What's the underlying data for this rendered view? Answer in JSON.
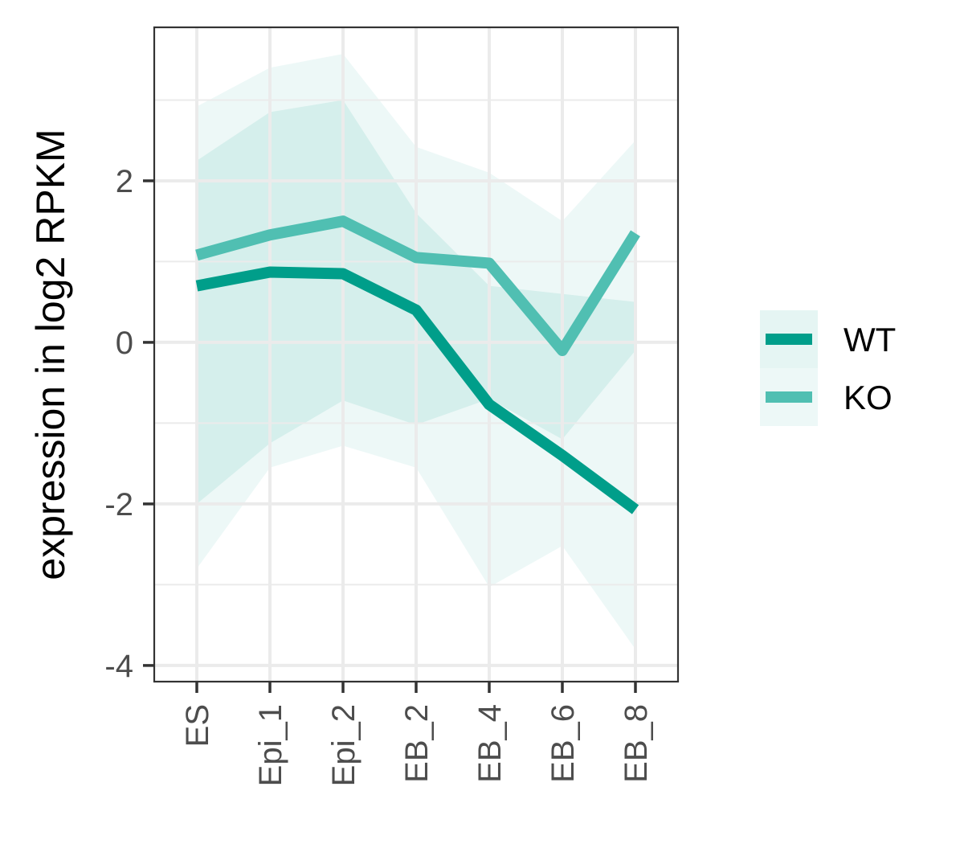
{
  "chart_data": {
    "type": "line",
    "title": "",
    "xlabel": "",
    "ylabel": "expression in log2 RPKM",
    "categories": [
      "ES",
      "Epi_1",
      "Epi_2",
      "EB_2",
      "EB_4",
      "EB_6",
      "EB_8"
    ],
    "ylim": [
      -4.2,
      3.9
    ],
    "yticks": [
      -4,
      -2,
      0,
      2
    ],
    "y_tick_labels": [
      "-4",
      "-2",
      "0",
      "2"
    ],
    "grid": true,
    "legend": "right",
    "series": [
      {
        "name": "WT",
        "color": "#009E8A",
        "values": [
          0.7,
          0.87,
          0.85,
          0.4,
          -0.77,
          -1.4,
          -2.07
        ],
        "band_lower": [
          -2.0,
          -1.25,
          -0.72,
          -1.02,
          -0.7,
          -1.2,
          -0.1
        ],
        "band_upper": [
          2.25,
          2.85,
          3.0,
          1.6,
          0.7,
          0.6,
          0.5
        ]
      },
      {
        "name": "KO",
        "color": "#50BFB2",
        "values": [
          1.08,
          1.33,
          1.5,
          1.05,
          0.98,
          -0.1,
          1.35
        ],
        "band_lower": [
          -2.8,
          -1.55,
          -1.28,
          -1.55,
          -3.03,
          -2.52,
          -3.8
        ],
        "band_upper": [
          2.92,
          3.4,
          3.57,
          2.42,
          2.1,
          1.5,
          2.5
        ]
      }
    ]
  }
}
